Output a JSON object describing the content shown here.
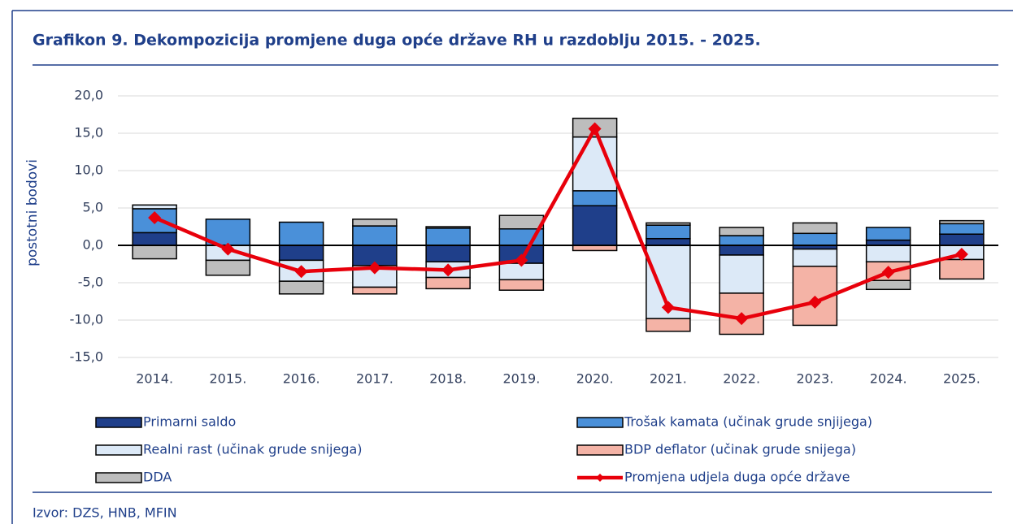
{
  "chart_data": {
    "type": "stacked_bar_line",
    "title": "Grafikon 9. Dekompozicija promjene duga opće države RH u razdoblju 2015. - 2025.",
    "y_label": "postotni bodovi",
    "source": "Izvor: DZS, HNB, MFIN",
    "categories": [
      "2014.",
      "2015.",
      "2016.",
      "2017.",
      "2018.",
      "2019.",
      "2020.",
      "2021.",
      "2022.",
      "2023.",
      "2024.",
      "2025."
    ],
    "ylim": [
      -15,
      20
    ],
    "yticks": [
      {
        "value": -15,
        "label": "-15,0"
      },
      {
        "value": -10,
        "label": "-10,0"
      },
      {
        "value": -5,
        "label": "-5,0"
      },
      {
        "value": 0,
        "label": "0,0"
      },
      {
        "value": 5,
        "label": "5,0"
      },
      {
        "value": 10,
        "label": "10,0"
      },
      {
        "value": 15,
        "label": "15,0"
      },
      {
        "value": 20,
        "label": "20,0"
      }
    ],
    "grid": true,
    "series": [
      {
        "name": "Primarni saldo",
        "color": "#1f3f8a",
        "kind": "bar",
        "values": [
          1.7,
          0,
          -2.0,
          -2.7,
          -2.2,
          -2.4,
          5.3,
          0.9,
          -1.3,
          -0.5,
          0.7,
          1.5
        ]
      },
      {
        "name": "Trošak kamata (učinak grude snjijega)",
        "color": "#4a90d9",
        "kind": "bar",
        "values": [
          3.2,
          3.5,
          3.1,
          2.6,
          2.3,
          2.2,
          2.0,
          1.8,
          1.3,
          1.6,
          1.7,
          1.4
        ]
      },
      {
        "name": "Realni rast (učinak grude snijega)",
        "color": "#dce9f7",
        "kind": "bar",
        "values": [
          0.5,
          -2.0,
          -2.8,
          -2.9,
          -2.1,
          -2.2,
          7.2,
          -9.8,
          -5.1,
          -2.3,
          -2.2,
          -1.9
        ]
      },
      {
        "name": "BDP deflator (učinak grude snijega)",
        "color": "#f4b3a6",
        "kind": "bar",
        "values": [
          0,
          0,
          0,
          -0.9,
          -1.5,
          -1.4,
          -0.7,
          -1.7,
          -5.5,
          -7.9,
          -2.5,
          -2.6
        ]
      },
      {
        "name": "DDA",
        "color": "#bdbdbd",
        "kind": "bar",
        "values": [
          -1.8,
          -2.0,
          -1.7,
          0.9,
          0.2,
          1.8,
          2.5,
          0.3,
          1.1,
          1.4,
          -1.2,
          0.4
        ]
      },
      {
        "name": "Promjena udjela duga opće države",
        "color": "#e8000b",
        "kind": "line",
        "values": [
          3.7,
          -0.5,
          -3.5,
          -3.0,
          -3.3,
          -2.0,
          15.6,
          -8.3,
          -9.8,
          -7.6,
          -3.6,
          -1.2
        ]
      }
    ]
  }
}
